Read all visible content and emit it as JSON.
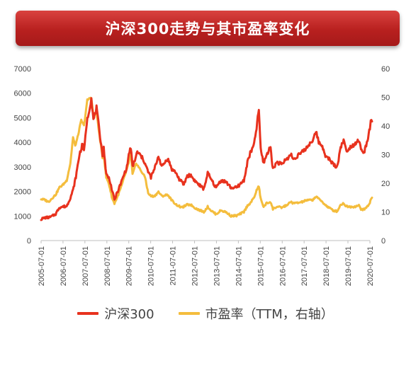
{
  "title": "沪深300走势与其市盈率变化",
  "colors": {
    "index": "#e8321e",
    "pe": "#f4bd3d",
    "axis": "#bfbfbf",
    "banner": "#b8201f"
  },
  "chart_data": {
    "type": "line",
    "title": "沪深300走势与其市盈率变化",
    "x_ticks": [
      "2005-07-01",
      "2006-07-01",
      "2007-07-01",
      "2008-07-01",
      "2009-07-01",
      "2010-07-01",
      "2011-07-01",
      "2012-07-01",
      "2013-07-01",
      "2014-07-01",
      "2015-07-01",
      "2016-07-01",
      "2017-07-01",
      "2018-07-01",
      "2019-07-01",
      "2020-07-01"
    ],
    "y_left": {
      "min": 0,
      "max": 7000,
      "ticks": [
        "0",
        "1000",
        "2000",
        "3000",
        "4000",
        "5000",
        "6000",
        "7000"
      ]
    },
    "y_right": {
      "min": 0,
      "max": 60,
      "ticks": [
        "0",
        "10",
        "20",
        "30",
        "40",
        "50",
        "60"
      ]
    },
    "grid": false,
    "legend_position": "bottom",
    "series": [
      {
        "name": "沪深300",
        "axis": "left",
        "color": "#e8321e",
        "points": [
          [
            "2005-07-01",
            870
          ],
          [
            "2005-09-01",
            930
          ],
          [
            "2005-12-01",
            950
          ],
          [
            "2006-03-01",
            1080
          ],
          [
            "2006-05-01",
            1350
          ],
          [
            "2006-07-01",
            1380
          ],
          [
            "2006-09-01",
            1400
          ],
          [
            "2006-11-01",
            1750
          ],
          [
            "2006-12-15",
            2050
          ],
          [
            "2007-02-01",
            2600
          ],
          [
            "2007-04-01",
            3500
          ],
          [
            "2007-05-25",
            3950
          ],
          [
            "2007-06-15",
            3600
          ],
          [
            "2007-08-01",
            4800
          ],
          [
            "2007-09-01",
            5200
          ],
          [
            "2007-10-16",
            5800
          ],
          [
            "2007-11-20",
            4900
          ],
          [
            "2008-01-10",
            5400
          ],
          [
            "2008-02-20",
            4600
          ],
          [
            "2008-04-20",
            3500
          ],
          [
            "2008-05-10",
            3800
          ],
          [
            "2008-06-20",
            2700
          ],
          [
            "2008-08-15",
            2500
          ],
          [
            "2008-09-20",
            2100
          ],
          [
            "2008-11-04",
            1650
          ],
          [
            "2008-12-20",
            1950
          ],
          [
            "2009-02-15",
            2300
          ],
          [
            "2009-04-15",
            2700
          ],
          [
            "2009-06-01",
            3000
          ],
          [
            "2009-07-01",
            3500
          ],
          [
            "2009-08-04",
            3800
          ],
          [
            "2009-09-01",
            3000
          ],
          [
            "2009-10-01",
            3200
          ],
          [
            "2009-11-20",
            3600
          ],
          [
            "2010-01-01",
            3500
          ],
          [
            "2010-03-01",
            3300
          ],
          [
            "2010-05-20",
            2800
          ],
          [
            "2010-07-05",
            2580
          ],
          [
            "2010-09-01",
            2900
          ],
          [
            "2010-11-08",
            3450
          ],
          [
            "2011-01-01",
            3000
          ],
          [
            "2011-04-10",
            3350
          ],
          [
            "2011-06-20",
            2900
          ],
          [
            "2011-08-15",
            2800
          ],
          [
            "2011-10-20",
            2500
          ],
          [
            "2012-01-05",
            2280
          ],
          [
            "2012-03-01",
            2650
          ],
          [
            "2012-05-01",
            2650
          ],
          [
            "2012-07-01",
            2450
          ],
          [
            "2012-09-01",
            2300
          ],
          [
            "2012-12-03",
            2100
          ],
          [
            "2013-02-05",
            2750
          ],
          [
            "2013-04-01",
            2500
          ],
          [
            "2013-06-25",
            2150
          ],
          [
            "2013-09-10",
            2450
          ],
          [
            "2013-12-01",
            2400
          ],
          [
            "2014-03-01",
            2150
          ],
          [
            "2014-06-01",
            2150
          ],
          [
            "2014-08-01",
            2300
          ],
          [
            "2014-10-01",
            2450
          ],
          [
            "2014-12-10",
            3300
          ],
          [
            "2015-01-15",
            3550
          ],
          [
            "2015-03-20",
            3900
          ],
          [
            "2015-05-01",
            4600
          ],
          [
            "2015-06-08",
            5350
          ],
          [
            "2015-07-08",
            3700
          ],
          [
            "2015-08-26",
            3150
          ],
          [
            "2015-10-15",
            3500
          ],
          [
            "2015-12-20",
            3800
          ],
          [
            "2016-01-28",
            2900
          ],
          [
            "2016-04-01",
            3200
          ],
          [
            "2016-06-20",
            3100
          ],
          [
            "2016-09-01",
            3300
          ],
          [
            "2016-11-29",
            3500
          ],
          [
            "2017-01-01",
            3300
          ],
          [
            "2017-04-01",
            3500
          ],
          [
            "2017-06-01",
            3600
          ],
          [
            "2017-08-01",
            3750
          ],
          [
            "2017-11-20",
            4100
          ],
          [
            "2018-01-24",
            4400
          ],
          [
            "2018-03-01",
            4000
          ],
          [
            "2018-05-01",
            3850
          ],
          [
            "2018-07-01",
            3400
          ],
          [
            "2018-09-01",
            3300
          ],
          [
            "2018-10-30",
            3100
          ],
          [
            "2019-01-03",
            3000
          ],
          [
            "2019-03-01",
            3800
          ],
          [
            "2019-04-20",
            4100
          ],
          [
            "2019-06-01",
            3650
          ],
          [
            "2019-08-01",
            3800
          ],
          [
            "2019-10-01",
            3900
          ],
          [
            "2019-12-31",
            4100
          ],
          [
            "2020-02-03",
            3700
          ],
          [
            "2020-03-23",
            3550
          ],
          [
            "2020-05-01",
            3900
          ],
          [
            "2020-07-01",
            4550
          ],
          [
            "2020-07-15",
            4800
          ],
          [
            "2020-08-05",
            4850
          ]
        ]
      },
      {
        "name": "市盈率（TTM，右轴）",
        "axis": "right",
        "color": "#f4bd3d",
        "points": [
          [
            "2005-07-01",
            14.5
          ],
          [
            "2005-09-01",
            14.2
          ],
          [
            "2005-11-01",
            13.5
          ],
          [
            "2006-01-01",
            14.8
          ],
          [
            "2006-03-01",
            16
          ],
          [
            "2006-05-01",
            18.5
          ],
          [
            "2006-07-01",
            19.5
          ],
          [
            "2006-09-01",
            21
          ],
          [
            "2006-11-01",
            27
          ],
          [
            "2006-12-15",
            36
          ],
          [
            "2007-01-20",
            33
          ],
          [
            "2007-03-01",
            36
          ],
          [
            "2007-05-01",
            42
          ],
          [
            "2007-06-15",
            40
          ],
          [
            "2007-08-10",
            49
          ],
          [
            "2007-10-16",
            50
          ],
          [
            "2007-11-20",
            43
          ],
          [
            "2008-01-10",
            45
          ],
          [
            "2008-02-20",
            38
          ],
          [
            "2008-04-20",
            29
          ],
          [
            "2008-05-10",
            30
          ],
          [
            "2008-06-20",
            22
          ],
          [
            "2008-08-01",
            20
          ],
          [
            "2008-10-01",
            14.5
          ],
          [
            "2008-11-04",
            13
          ],
          [
            "2008-12-20",
            15
          ],
          [
            "2009-03-01",
            19
          ],
          [
            "2009-05-01",
            23
          ],
          [
            "2009-07-01",
            27
          ],
          [
            "2009-08-04",
            31
          ],
          [
            "2009-09-01",
            23
          ],
          [
            "2009-11-01",
            27
          ],
          [
            "2010-01-01",
            25
          ],
          [
            "2010-04-01",
            22
          ],
          [
            "2010-05-20",
            16.5
          ],
          [
            "2010-07-05",
            15.5
          ],
          [
            "2010-09-01",
            15.5
          ],
          [
            "2010-11-08",
            17
          ],
          [
            "2011-01-01",
            15.5
          ],
          [
            "2011-04-10",
            16
          ],
          [
            "2011-06-20",
            14
          ],
          [
            "2011-09-01",
            12.5
          ],
          [
            "2011-12-01",
            11.5
          ],
          [
            "2012-03-01",
            12.5
          ],
          [
            "2012-05-01",
            12.5
          ],
          [
            "2012-07-01",
            11.5
          ],
          [
            "2012-09-01",
            10.8
          ],
          [
            "2012-12-03",
            10
          ],
          [
            "2013-02-05",
            11.8
          ],
          [
            "2013-04-01",
            10.5
          ],
          [
            "2013-06-25",
            9.2
          ],
          [
            "2013-09-10",
            10.5
          ],
          [
            "2013-12-01",
            10
          ],
          [
            "2014-03-01",
            8.6
          ],
          [
            "2014-06-01",
            8.7
          ],
          [
            "2014-08-01",
            9.3
          ],
          [
            "2014-10-01",
            10
          ],
          [
            "2014-12-10",
            12.5
          ],
          [
            "2015-01-15",
            13
          ],
          [
            "2015-03-20",
            15
          ],
          [
            "2015-05-01",
            17.5
          ],
          [
            "2015-06-08",
            19
          ],
          [
            "2015-07-08",
            14.5
          ],
          [
            "2015-08-26",
            11.8
          ],
          [
            "2015-10-15",
            13
          ],
          [
            "2015-12-20",
            13.5
          ],
          [
            "2016-01-28",
            11
          ],
          [
            "2016-04-01",
            11.8
          ],
          [
            "2016-06-20",
            11.5
          ],
          [
            "2016-09-01",
            12.2
          ],
          [
            "2016-11-29",
            13.5
          ],
          [
            "2017-01-01",
            13
          ],
          [
            "2017-04-01",
            13.2
          ],
          [
            "2017-06-01",
            13.5
          ],
          [
            "2017-08-01",
            14
          ],
          [
            "2017-11-20",
            14.2
          ],
          [
            "2018-01-24",
            15.5
          ],
          [
            "2018-03-01",
            14.5
          ],
          [
            "2018-05-01",
            13.5
          ],
          [
            "2018-07-01",
            12.2
          ],
          [
            "2018-09-01",
            11.3
          ],
          [
            "2018-10-30",
            10.5
          ],
          [
            "2019-01-03",
            10.2
          ],
          [
            "2019-03-01",
            12.5
          ],
          [
            "2019-04-20",
            13
          ],
          [
            "2019-06-01",
            12
          ],
          [
            "2019-08-01",
            11.8
          ],
          [
            "2019-10-01",
            11.8
          ],
          [
            "2019-12-31",
            12.2
          ],
          [
            "2020-02-03",
            11
          ],
          [
            "2020-03-23",
            10.8
          ],
          [
            "2020-05-01",
            11.5
          ],
          [
            "2020-07-01",
            13
          ],
          [
            "2020-07-15",
            14.5
          ],
          [
            "2020-08-05",
            15
          ]
        ]
      }
    ]
  },
  "legend": {
    "items": [
      {
        "label": "沪深300",
        "color": "#e8321e"
      },
      {
        "label": "市盈率（TTM，右轴）",
        "color": "#f4bd3d"
      }
    ]
  }
}
